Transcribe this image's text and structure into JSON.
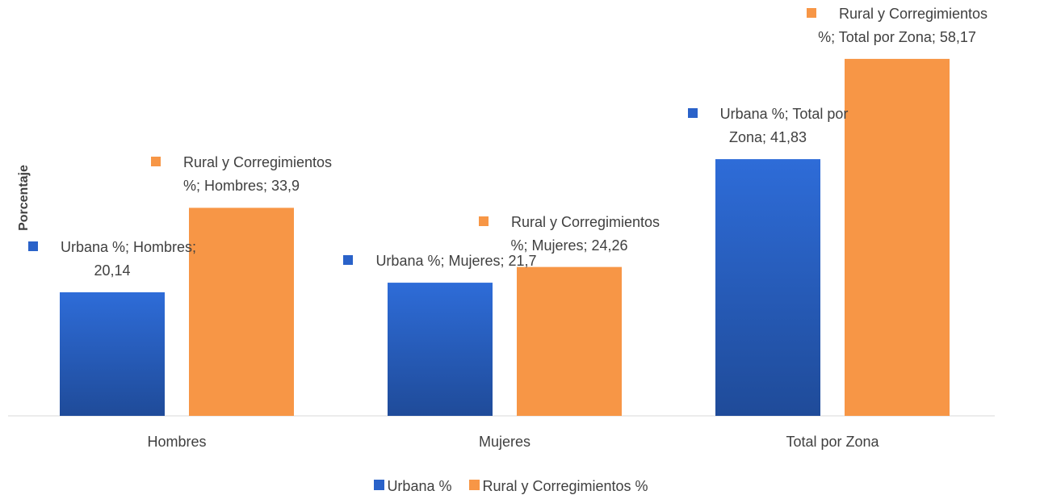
{
  "chart_data": {
    "type": "bar",
    "y_label": "Porcentaje",
    "categories": [
      "Hombres",
      "Mujeres",
      "Total por Zona"
    ],
    "series": [
      {
        "name": "Urbana %",
        "color": "#2a62c9",
        "values": [
          20.14,
          21.7,
          41.83
        ],
        "value_labels": [
          "Urbana %; Hombres; 20,14",
          "Urbana %; Mujeres; 21,7",
          "Urbana %; Total por Zona; 41,83"
        ]
      },
      {
        "name": "Rural y Corregimientos %",
        "color": "#f79646",
        "values": [
          33.9,
          24.26,
          58.17
        ],
        "value_labels": [
          "Rural y Corregimientos %; Hombres; 33,9",
          "Rural y Corregimientos %; Mujeres; 24,26",
          "Rural y Corregimientos %; Total por Zona; 58,17"
        ]
      }
    ],
    "ylim": [
      0,
      60
    ],
    "legend": "bottom"
  }
}
